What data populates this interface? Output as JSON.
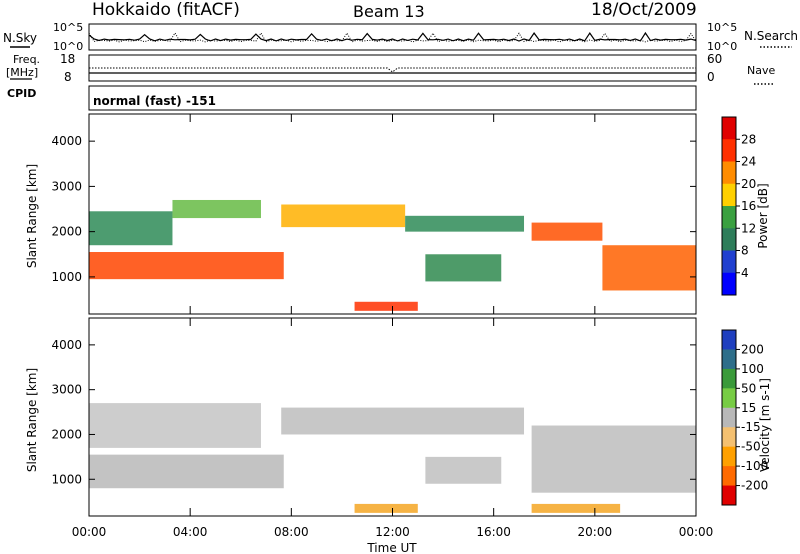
{
  "header": {
    "station": "Hokkaido (fitACF)",
    "beam": "Beam 13",
    "date": "18/Oct/2009"
  },
  "top_panels": {
    "nsky_label": "N.Sky",
    "nsearch_label": "N.Search",
    "nsky_ticks": [
      "10^5",
      "10^0"
    ],
    "nsearch_ticks": [
      "10^5",
      "10^0"
    ],
    "freq_label_1": "Freq.",
    "freq_label_2": "[MHz]",
    "freq_ticks": [
      "18",
      "8"
    ],
    "nave_label": "Nave",
    "nave_ticks": [
      "60",
      "0"
    ],
    "cpid_label": "CPID",
    "cpid_value": "normal (fast) -151"
  },
  "chart_data": [
    {
      "type": "heatmap",
      "name": "power",
      "ylabel": "Slant Range [km]",
      "y_ticks": [
        "4000",
        "3000",
        "2000",
        "1000"
      ],
      "x_ticks": [
        "00:00",
        "04:00",
        "08:00",
        "12:00",
        "16:00",
        "20:00",
        "00:00"
      ],
      "colorbar_label": "Power [dB]",
      "colorbar_ticks": [
        "28",
        "24",
        "20",
        "16",
        "12",
        "8",
        "4"
      ],
      "colorbar_colors": [
        "#e00000",
        "#ff3000",
        "#ff8c00",
        "#ffd000",
        "#3aa040",
        "#2e7d5a",
        "#2040d0",
        "#0000ff"
      ],
      "bands": [
        {
          "t0": 0.0,
          "t1": 7.7,
          "r0": 950,
          "r1": 1550,
          "color": "#ff4500"
        },
        {
          "t0": 0.0,
          "t1": 3.3,
          "r0": 1700,
          "r1": 2450,
          "color": "#2e8b57"
        },
        {
          "t0": 3.3,
          "t1": 6.8,
          "r0": 2300,
          "r1": 2700,
          "color": "#66bb44"
        },
        {
          "t0": 7.6,
          "t1": 12.5,
          "r0": 2100,
          "r1": 2600,
          "color": "#ffb000"
        },
        {
          "t0": 12.5,
          "t1": 17.2,
          "r0": 2000,
          "r1": 2350,
          "color": "#2e8b57"
        },
        {
          "t0": 17.5,
          "t1": 20.3,
          "r0": 1800,
          "r1": 2200,
          "color": "#ff5000"
        },
        {
          "t0": 20.3,
          "t1": 24.0,
          "r0": 700,
          "r1": 1700,
          "color": "#ff6000"
        },
        {
          "t0": 13.3,
          "t1": 16.3,
          "r0": 900,
          "r1": 1500,
          "color": "#2f8a4f"
        },
        {
          "t0": 10.5,
          "t1": 13.0,
          "r0": 250,
          "r1": 450,
          "color": "#ff3000"
        }
      ]
    },
    {
      "type": "heatmap",
      "name": "velocity",
      "ylabel": "Slant Range [km]",
      "xlabel": "Time UT",
      "y_ticks": [
        "4000",
        "3000",
        "2000",
        "1000"
      ],
      "x_ticks": [
        "00:00",
        "04:00",
        "08:00",
        "12:00",
        "16:00",
        "20:00",
        "00:00"
      ],
      "colorbar_label": "Velocity [m s-1]",
      "colorbar_ticks": [
        "200",
        "100",
        "50",
        "15",
        "-15",
        "-50",
        "-100",
        "-200"
      ],
      "colorbar_colors": [
        "#1f3fbf",
        "#2e6e8a",
        "#3a9a3a",
        "#77cc44",
        "#b8b8b8",
        "#f4c070",
        "#ffa000",
        "#ff6a00",
        "#e00000"
      ],
      "bands": [
        {
          "t0": 0.0,
          "t1": 7.7,
          "r0": 800,
          "r1": 1550,
          "color": "#b9b9b9"
        },
        {
          "t0": 0.0,
          "t1": 6.8,
          "r0": 1700,
          "r1": 2700,
          "color": "#c4c4c4"
        },
        {
          "t0": 7.6,
          "t1": 17.2,
          "r0": 2000,
          "r1": 2600,
          "color": "#bdbdbd"
        },
        {
          "t0": 17.5,
          "t1": 24.0,
          "r0": 700,
          "r1": 2200,
          "color": "#bdbdbd"
        },
        {
          "t0": 13.3,
          "t1": 16.3,
          "r0": 900,
          "r1": 1500,
          "color": "#c0c0c0"
        },
        {
          "t0": 10.5,
          "t1": 13.0,
          "r0": 250,
          "r1": 450,
          "color": "#f5a623"
        },
        {
          "t0": 17.5,
          "t1": 21.0,
          "r0": 250,
          "r1": 450,
          "color": "#f5a623"
        }
      ]
    }
  ]
}
